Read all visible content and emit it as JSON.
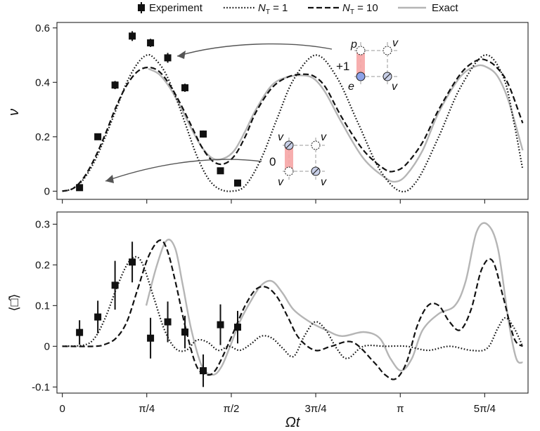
{
  "chart_data": [
    {
      "type": "line",
      "panel": "top",
      "ylabel": "ν",
      "xlabel": "",
      "ylim": [
        -0.03,
        0.62
      ],
      "xlim": [
        -0.05,
        4.33
      ],
      "yticks": [
        0,
        0.2,
        0.4,
        0.6
      ],
      "ytick_labels": [
        "0",
        "0.2",
        "0.4",
        "0.6"
      ],
      "grid": false,
      "legend": {
        "placement": "top-outside",
        "entries": [
          {
            "label": "Experiment",
            "style": "marker"
          },
          {
            "label_base": "N",
            "label_sub": "T",
            "label_rest": " = 1",
            "style": "dotted"
          },
          {
            "label_base": "N",
            "label_sub": "T",
            "label_rest": " = 10",
            "style": "dashed"
          },
          {
            "label": "Exact",
            "style": "gray"
          }
        ]
      },
      "series": [
        {
          "name": "Experiment",
          "style": "marker",
          "x": [
            0.16,
            0.33,
            0.49,
            0.65,
            0.82,
            0.98,
            1.14,
            1.31,
            1.47,
            1.63
          ],
          "y": [
            0.013,
            0.2,
            0.39,
            0.57,
            0.545,
            0.49,
            0.38,
            0.21,
            0.075,
            0.03
          ],
          "err": [
            0.006,
            0.012,
            0.015,
            0.018,
            0.015,
            0.018,
            0.015,
            0.013,
            0.01,
            0.01
          ]
        },
        {
          "name": "N_T = 1",
          "style": "dotted",
          "x": [
            0,
            0.1,
            0.2,
            0.3,
            0.4,
            0.5,
            0.6,
            0.7,
            0.785,
            0.85,
            0.95,
            1.05,
            1.15,
            1.25,
            1.35,
            1.45,
            1.571,
            1.7,
            1.85,
            2.0,
            2.15,
            2.356,
            2.55,
            2.75,
            2.95,
            3.142,
            3.3,
            3.5,
            3.7,
            3.927,
            4.1,
            4.2,
            4.28
          ],
          "y": [
            0,
            0.01,
            0.045,
            0.11,
            0.2,
            0.3,
            0.4,
            0.47,
            0.5,
            0.49,
            0.44,
            0.35,
            0.24,
            0.13,
            0.05,
            0.01,
            0.0,
            0.02,
            0.12,
            0.27,
            0.41,
            0.5,
            0.42,
            0.25,
            0.08,
            0.0,
            0.04,
            0.2,
            0.38,
            0.5,
            0.42,
            0.25,
            0.08
          ]
        },
        {
          "name": "N_T = 10",
          "style": "dashed",
          "x": [
            0,
            0.1,
            0.2,
            0.3,
            0.4,
            0.5,
            0.6,
            0.7,
            0.8,
            0.9,
            1.0,
            1.1,
            1.2,
            1.3,
            1.4,
            1.5,
            1.6,
            1.7,
            1.8,
            1.95,
            2.1,
            2.25,
            2.35,
            2.45,
            2.6,
            2.8,
            3.0,
            3.1,
            3.2,
            3.35,
            3.5,
            3.7,
            3.85,
            3.95,
            4.05,
            4.15,
            4.28
          ],
          "y": [
            0,
            0.01,
            0.05,
            0.12,
            0.21,
            0.31,
            0.39,
            0.44,
            0.455,
            0.44,
            0.39,
            0.32,
            0.24,
            0.16,
            0.11,
            0.1,
            0.13,
            0.2,
            0.29,
            0.38,
            0.42,
            0.43,
            0.42,
            0.38,
            0.27,
            0.15,
            0.08,
            0.075,
            0.1,
            0.18,
            0.3,
            0.43,
            0.48,
            0.48,
            0.45,
            0.39,
            0.25
          ]
        },
        {
          "name": "Exact",
          "style": "gray",
          "x": [
            0.8,
            0.9,
            1.0,
            1.1,
            1.2,
            1.3,
            1.4,
            1.5,
            1.6,
            1.7,
            1.8,
            1.95,
            2.1,
            2.25,
            2.35,
            2.45,
            2.6,
            2.8,
            3.0,
            3.1,
            3.2,
            3.35,
            3.5,
            3.7,
            3.85,
            3.95,
            4.05,
            4.15,
            4.28
          ],
          "y": [
            0.45,
            0.43,
            0.38,
            0.31,
            0.23,
            0.16,
            0.12,
            0.12,
            0.15,
            0.22,
            0.3,
            0.39,
            0.42,
            0.425,
            0.41,
            0.36,
            0.25,
            0.12,
            0.05,
            0.035,
            0.06,
            0.15,
            0.29,
            0.42,
            0.46,
            0.455,
            0.42,
            0.33,
            0.15
          ]
        }
      ],
      "annotations": [
        {
          "text": "+1",
          "role": "level label"
        },
        {
          "text": "0",
          "role": "level label"
        },
        {
          "text": "p",
          "role": "plaquette site"
        },
        {
          "text": "v",
          "role": "plaquette site"
        },
        {
          "text": "e",
          "role": "plaquette site"
        }
      ]
    },
    {
      "type": "line",
      "panel": "bottom",
      "ylabel": "⟨□̂⟩",
      "xlabel": "Ωt",
      "ylim": [
        -0.115,
        0.33
      ],
      "xlim": [
        -0.05,
        4.33
      ],
      "yticks": [
        -0.1,
        0,
        0.1,
        0.2,
        0.3
      ],
      "ytick_labels": [
        "-0.1",
        "0",
        "0.1",
        "0.2",
        "0.3"
      ],
      "xticks": [
        0,
        0.785,
        1.571,
        2.356,
        3.142,
        3.927
      ],
      "xtick_labels": [
        "0",
        "π/4",
        "π/2",
        "3π/4",
        "π",
        "5π/4"
      ],
      "grid": false,
      "series": [
        {
          "name": "Experiment",
          "style": "marker",
          "x": [
            0.16,
            0.33,
            0.49,
            0.65,
            0.82,
            0.98,
            1.14,
            1.31,
            1.47,
            1.63
          ],
          "y": [
            0.034,
            0.072,
            0.15,
            0.207,
            0.02,
            0.06,
            0.035,
            -0.06,
            0.053,
            0.047
          ],
          "err": [
            0.03,
            0.04,
            0.06,
            0.05,
            0.05,
            0.05,
            0.04,
            0.04,
            0.05,
            0.04
          ]
        },
        {
          "name": "N_T = 1",
          "style": "dotted",
          "x": [
            0,
            0.2,
            0.3,
            0.4,
            0.5,
            0.6,
            0.68,
            0.75,
            0.85,
            0.95,
            1.05,
            1.15,
            1.25,
            1.35,
            1.45,
            1.55,
            1.65,
            1.75,
            1.85,
            1.95,
            2.05,
            2.15,
            2.25,
            2.35,
            2.45,
            2.55,
            2.65,
            2.8,
            3.0,
            3.2,
            3.4,
            3.6,
            3.8,
            3.95,
            4.05,
            4.12,
            4.2,
            4.28
          ],
          "y": [
            0,
            0.003,
            0.02,
            0.07,
            0.14,
            0.2,
            0.22,
            0.2,
            0.12,
            0.04,
            -0.005,
            -0.01,
            0.015,
            0.01,
            -0.01,
            0.0,
            -0.01,
            0.005,
            0.025,
            0.02,
            -0.005,
            -0.025,
            0.025,
            0.06,
            0.04,
            -0.005,
            -0.03,
            0.0,
            0.0,
            0.0,
            -0.01,
            0.0,
            -0.01,
            -0.005,
            0.045,
            0.07,
            0.045,
            0.0
          ]
        },
        {
          "name": "N_T = 10",
          "style": "dashed",
          "x": [
            0,
            0.3,
            0.4,
            0.5,
            0.6,
            0.7,
            0.8,
            0.9,
            0.97,
            1.05,
            1.15,
            1.25,
            1.35,
            1.42,
            1.5,
            1.6,
            1.7,
            1.8,
            1.9,
            2.0,
            2.1,
            2.2,
            2.35,
            2.5,
            2.7,
            2.9,
            3.0,
            3.1,
            3.2,
            3.3,
            3.4,
            3.5,
            3.6,
            3.7,
            3.8,
            3.9,
            4.0,
            4.1,
            4.2,
            4.28
          ],
          "y": [
            0,
            0.0,
            0.005,
            0.02,
            0.06,
            0.14,
            0.22,
            0.26,
            0.24,
            0.16,
            0.04,
            -0.05,
            -0.07,
            -0.06,
            -0.02,
            0.04,
            0.1,
            0.14,
            0.145,
            0.12,
            0.07,
            0.02,
            -0.01,
            0.0,
            0.01,
            -0.04,
            -0.07,
            -0.08,
            -0.04,
            0.05,
            0.1,
            0.1,
            0.06,
            0.04,
            0.09,
            0.19,
            0.21,
            0.12,
            0.02,
            0.0
          ]
        },
        {
          "name": "Exact",
          "style": "gray",
          "x": [
            0.78,
            0.88,
            0.97,
            1.05,
            1.12,
            1.2,
            1.3,
            1.4,
            1.48,
            1.56,
            1.65,
            1.75,
            1.85,
            1.95,
            2.05,
            2.15,
            2.3,
            2.45,
            2.6,
            2.8,
            2.95,
            3.05,
            3.15,
            3.25,
            3.35,
            3.5,
            3.65,
            3.75,
            3.85,
            3.95,
            4.05,
            4.15,
            4.22,
            4.28
          ],
          "y": [
            0.1,
            0.2,
            0.26,
            0.24,
            0.15,
            0.04,
            -0.05,
            -0.07,
            -0.05,
            0.0,
            0.06,
            0.11,
            0.15,
            0.16,
            0.13,
            0.09,
            0.06,
            0.04,
            0.025,
            0.035,
            0.02,
            -0.03,
            -0.06,
            -0.03,
            0.04,
            0.08,
            0.1,
            0.16,
            0.28,
            0.3,
            0.24,
            0.06,
            -0.03,
            -0.04
          ]
        }
      ]
    }
  ]
}
